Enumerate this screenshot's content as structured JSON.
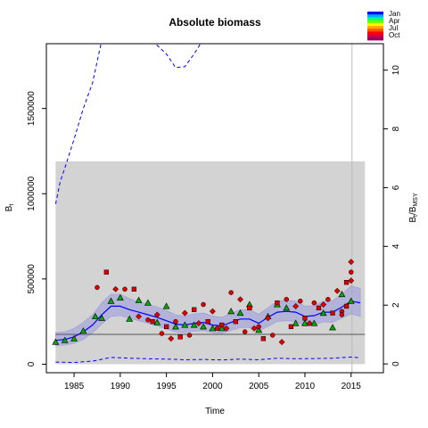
{
  "chart_data": {
    "type": "scatter",
    "title": "Absolute biomass",
    "xlabel": "Time",
    "ylabel_left": "B",
    "ylabel_left_sub": "t",
    "ylabel_right": "B",
    "ylabel_right_sub": "t",
    "ylabel_right_suffix": "/B",
    "ylabel_right_suffix_sub": "MSY",
    "xlim": [
      1982,
      2018.5
    ],
    "ylim_left": [
      -50000,
      1880000
    ],
    "ylim_right": [
      -0.3,
      10.9
    ],
    "x_ticks": [
      1985,
      1990,
      1995,
      2000,
      2005,
      2010,
      2015
    ],
    "y_ticks_left": [
      0,
      500000,
      1000000,
      1500000
    ],
    "y_tick_labels_left": [
      "0",
      "500000",
      "1000000",
      "1500000"
    ],
    "y_ticks_right": [
      0,
      2,
      4,
      6,
      8,
      10
    ],
    "y_tick_labels_right": [
      "0",
      "2",
      "4",
      "6",
      "8",
      "10"
    ],
    "gray_region": {
      "x0": 1983,
      "x1": 2016.5,
      "y0": 0,
      "y1": 1190000,
      "color": "#d3d3d3"
    },
    "reference_line": {
      "y": 175000,
      "color": "#555555"
    },
    "vertical_line": {
      "x": 2015.1,
      "color": "#bbbbbb"
    },
    "colors": {
      "estimate": "#0000ff",
      "ci_band": "#9999dd",
      "upper_dashed": "#0000ff",
      "triangle_fill": "#00aa00",
      "dot_fill": "#dd0000"
    },
    "estimate": {
      "x": [
        1983,
        1984,
        1985,
        1986,
        1987,
        1988,
        1989,
        1990,
        1991,
        1992,
        1993,
        1994,
        1995,
        1996,
        1997,
        1998,
        1999,
        2000,
        2001,
        2002,
        2003,
        2004,
        2005,
        2006,
        2007,
        2008,
        2009,
        2010,
        2011,
        2012,
        2013,
        2014,
        2015,
        2016
      ],
      "y": [
        140000,
        145000,
        160000,
        190000,
        230000,
        290000,
        340000,
        340000,
        320000,
        305000,
        290000,
        275000,
        255000,
        235000,
        230000,
        240000,
        245000,
        230000,
        225000,
        245000,
        265000,
        265000,
        240000,
        275000,
        305000,
        310000,
        305000,
        280000,
        285000,
        305000,
        305000,
        335000,
        370000,
        360000
      ]
    },
    "ci_band": {
      "x": [
        1983,
        1984,
        1985,
        1986,
        1987,
        1988,
        1989,
        1990,
        1991,
        1992,
        1993,
        1994,
        1995,
        1996,
        1997,
        1998,
        1999,
        2000,
        2001,
        2002,
        2003,
        2004,
        2005,
        2006,
        2007,
        2008,
        2009,
        2010,
        2011,
        2012,
        2013,
        2014,
        2015,
        2016
      ],
      "lower": [
        110000,
        112000,
        122000,
        145000,
        185000,
        235000,
        280000,
        285000,
        270000,
        255000,
        240000,
        225000,
        205000,
        190000,
        185000,
        193000,
        197000,
        185000,
        180000,
        198000,
        215000,
        215000,
        193000,
        222000,
        250000,
        255000,
        250000,
        225000,
        230000,
        248000,
        245000,
        270000,
        295000,
        280000
      ],
      "upper": [
        185000,
        190000,
        210000,
        245000,
        290000,
        360000,
        410000,
        410000,
        385000,
        365000,
        350000,
        335000,
        315000,
        290000,
        283000,
        295000,
        300000,
        283000,
        275000,
        298000,
        320000,
        320000,
        293000,
        330000,
        370000,
        375000,
        370000,
        340000,
        345000,
        370000,
        372000,
        410000,
        460000,
        445000
      ]
    },
    "upper_dashed": {
      "x": [
        1983,
        1983.5,
        1984,
        1985,
        1986,
        1987,
        1988,
        1988.5,
        1991,
        1993,
        1994,
        1995,
        1996,
        1997,
        1998,
        1998.8
      ],
      "y": [
        940000,
        1070000,
        1150000,
        1320000,
        1500000,
        1650000,
        1900000,
        1950000,
        1950000,
        1950000,
        1870000,
        1820000,
        1740000,
        1745000,
        1820000,
        1890000
      ]
    },
    "lower_dashed": {
      "x": [
        1983,
        1985,
        1987,
        1989,
        1991,
        1993,
        1995,
        1997,
        1999,
        2001,
        2003,
        2005,
        2007,
        2009,
        2011,
        2013,
        2015,
        2016
      ],
      "y": [
        12000,
        10000,
        18000,
        40000,
        35000,
        32000,
        30000,
        26000,
        28000,
        25000,
        30000,
        26000,
        35000,
        32000,
        33000,
        35000,
        42000,
        38000
      ]
    },
    "upper_dashed_right_fragment": {
      "x": [
        2004.8,
        2005.5
      ],
      "y": [
        1890000,
        1880000
      ]
    },
    "triangles": {
      "x": [
        1983,
        1984,
        1985,
        1986,
        1987.3,
        1988,
        1989,
        1990,
        1991,
        1992,
        1993,
        1994,
        1995,
        1996,
        1997,
        1998,
        1999,
        2000,
        2001,
        2002,
        2003,
        2004,
        2005,
        2006,
        2007,
        2008,
        2009,
        2010,
        2011,
        2012,
        2013,
        2014,
        2015
      ],
      "y": [
        130000,
        140000,
        150000,
        195000,
        280000,
        270000,
        370000,
        390000,
        265000,
        375000,
        360000,
        245000,
        340000,
        220000,
        230000,
        230000,
        220000,
        210000,
        210000,
        310000,
        300000,
        350000,
        200000,
        280000,
        350000,
        330000,
        240000,
        240000,
        240000,
        300000,
        215000,
        410000,
        370000
      ]
    },
    "dots": {
      "x": [
        1987.5,
        1988.5,
        1989.5,
        1990.5,
        1991.5,
        1992,
        1993,
        1993.5,
        1994,
        1994.5,
        1995,
        1995.5,
        1996,
        1996.5,
        1997,
        1997.5,
        1998,
        1998.5,
        1999,
        1999.5,
        2000,
        2000.5,
        2001,
        2001.5,
        2002,
        2002.5,
        2003,
        2003.5,
        2004,
        2004.5,
        2005,
        2005.5,
        2006,
        2006.5,
        2007,
        2007.5,
        2008,
        2008.5,
        2009,
        2009.5,
        2010,
        2010.5,
        2011,
        2011.5,
        2012,
        2012.5,
        2013,
        2013.5,
        2014,
        2014.5,
        2015
      ],
      "y": [
        450000,
        540000,
        440000,
        440000,
        440000,
        280000,
        260000,
        250000,
        290000,
        180000,
        220000,
        150000,
        250000,
        160000,
        300000,
        170000,
        320000,
        240000,
        350000,
        250000,
        310000,
        210000,
        230000,
        210000,
        420000,
        250000,
        380000,
        190000,
        330000,
        210000,
        220000,
        150000,
        270000,
        170000,
        360000,
        130000,
        380000,
        220000,
        340000,
        370000,
        270000,
        240000,
        360000,
        330000,
        350000,
        380000,
        300000,
        430000,
        310000,
        480000,
        600000
      ]
    },
    "dots_extra": {
      "x": [
        2014,
        2014.5,
        2015,
        2015
      ],
      "y": [
        290000,
        340000,
        490000,
        540000
      ]
    },
    "legend": {
      "items": [
        "Jan",
        "Apr",
        "Jul",
        "Oct"
      ],
      "gradient": [
        "#0000ff",
        "#00aaff",
        "#00ff88",
        "#66ff00",
        "#ffff00",
        "#ffaa00",
        "#ff5500",
        "#ff0000",
        "#cc0044",
        "#990066"
      ]
    }
  }
}
